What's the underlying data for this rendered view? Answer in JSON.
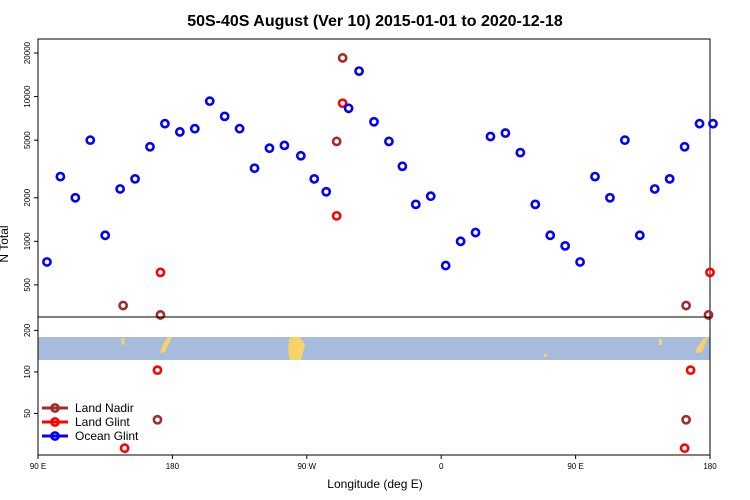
{
  "chart_data": {
    "type": "scatter",
    "title": "50S-40S August (Ver 10)   2015-01-01 to 2020-12-18",
    "xlabel": "Longitude (deg E)",
    "ylabel": "N Total",
    "x_ticks": [
      {
        "lon": 90,
        "label": "90 E"
      },
      {
        "lon": 180,
        "label": "180"
      },
      {
        "lon": 270,
        "label": "90 W"
      },
      {
        "lon": 360,
        "label": "0"
      },
      {
        "lon": 450,
        "label": "90 E"
      },
      {
        "lon": 540,
        "label": "180"
      }
    ],
    "xlim": [
      90,
      540
    ],
    "top_panel": {
      "scale": "log",
      "ylim": [
        300,
        25000
      ],
      "y_ticks": [
        500,
        1000,
        2000,
        5000,
        10000,
        20000
      ]
    },
    "bottom_panel": {
      "scale": "log",
      "ylim": [
        25,
        250
      ],
      "y_ticks": [
        50,
        100,
        200
      ]
    },
    "series": [
      {
        "name": "Land Nadir",
        "color": "#a52a2a",
        "top_points": [
          [
            147,
            360
          ],
          [
            172,
            310
          ],
          [
            290,
            4900
          ],
          [
            294,
            18500
          ],
          [
            524,
            360
          ],
          [
            539,
            310
          ]
        ],
        "bottom_points": [
          [
            170,
            45
          ],
          [
            524,
            45
          ]
        ]
      },
      {
        "name": "Land Glint",
        "color": "#ff0000",
        "top_points": [
          [
            172,
            610
          ],
          [
            290,
            1500
          ],
          [
            294,
            9000
          ],
          [
            540,
            610
          ]
        ],
        "bottom_points": [
          [
            148,
            28
          ],
          [
            170,
            103
          ],
          [
            523,
            28
          ],
          [
            527,
            103
          ]
        ]
      },
      {
        "name": "Ocean Glint",
        "color": "#0000ff",
        "top_points": [
          [
            96,
            720
          ],
          [
            105,
            2800
          ],
          [
            115,
            2000
          ],
          [
            125,
            5000
          ],
          [
            135,
            1100
          ],
          [
            145,
            2300
          ],
          [
            155,
            2700
          ],
          [
            165,
            4500
          ],
          [
            175,
            6500
          ],
          [
            185,
            5700
          ],
          [
            195,
            6000
          ],
          [
            205,
            9300
          ],
          [
            215,
            7300
          ],
          [
            225,
            6000
          ],
          [
            235,
            3200
          ],
          [
            245,
            4400
          ],
          [
            255,
            4600
          ],
          [
            266,
            3900
          ],
          [
            275,
            2700
          ],
          [
            283,
            2200
          ],
          [
            298,
            8300
          ],
          [
            305,
            15000
          ],
          [
            315,
            6700
          ],
          [
            325,
            4900
          ],
          [
            334,
            3300
          ],
          [
            343,
            1800
          ],
          [
            353,
            2050
          ],
          [
            363,
            680
          ],
          [
            373,
            1000
          ],
          [
            383,
            1150
          ],
          [
            393,
            5300
          ],
          [
            403,
            5600
          ],
          [
            413,
            4100
          ],
          [
            423,
            1800
          ],
          [
            433,
            1100
          ],
          [
            443,
            930
          ],
          [
            453,
            720
          ],
          [
            463,
            2800
          ],
          [
            473,
            2000
          ],
          [
            483,
            5000
          ],
          [
            493,
            1100
          ],
          [
            503,
            2300
          ],
          [
            513,
            2700
          ],
          [
            523,
            4500
          ],
          [
            533,
            6500
          ],
          [
            542,
            6500
          ]
        ],
        "bottom_points": []
      }
    ],
    "legend": {
      "placement": "bottom-left"
    },
    "grid": false
  }
}
